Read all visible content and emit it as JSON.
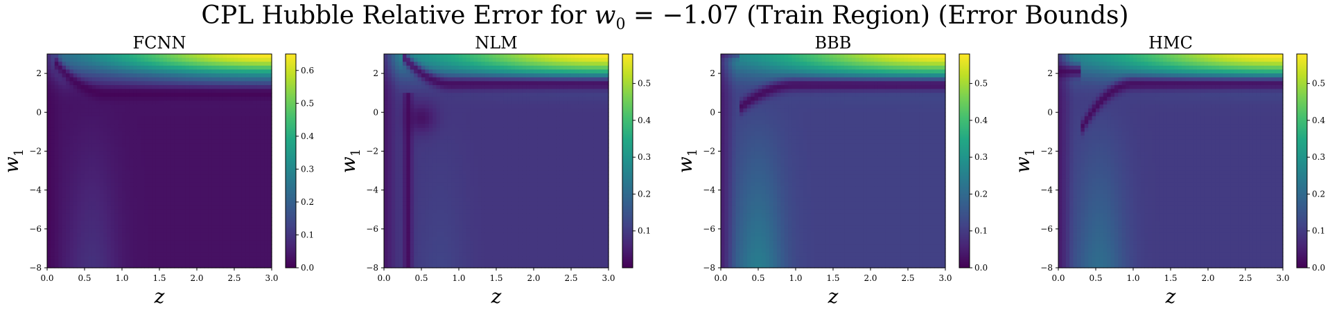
{
  "title_prefix": "CPL Hubble Relative Error for ",
  "title_math": "w",
  "title_math_sub": "0",
  "title_math_rest": " = −1.07",
  "title_suffix": " (Train Region) (Error Bounds)",
  "chart_data": [
    {
      "type": "heatmap",
      "title": "FCNN",
      "xlabel": "z",
      "ylabel": "w1",
      "xlim": [
        0.0,
        3.0
      ],
      "ylim": [
        -8,
        3
      ],
      "xticks": [
        0.0,
        0.5,
        1.0,
        1.5,
        2.0,
        2.5,
        3.0
      ],
      "xtick_labels": [
        "0.0",
        "0.5",
        "1.0",
        "1.5",
        "2.0",
        "2.5",
        "3.0"
      ],
      "yticks": [
        -8,
        -6,
        -4,
        -2,
        0,
        2
      ],
      "ytick_labels": [
        "−8",
        "−6",
        "−4",
        "−2",
        "0",
        "2"
      ],
      "colormap": "viridis",
      "colorbar_range": [
        0.0,
        0.65
      ],
      "colorbar_ticks": [
        0.0,
        0.1,
        0.2,
        0.3,
        0.4,
        0.5,
        0.6
      ],
      "colorbar_tick_labels": [
        "0.0",
        "0.1",
        "0.2",
        "0.3",
        "0.4",
        "0.5",
        "0.6"
      ],
      "features": {
        "base": 0.03,
        "corner_peak": {
          "value": 0.65,
          "x": 3.0,
          "y": 3.0
        },
        "band": {
          "center_z": 0.6,
          "value": 0.1
        },
        "trough": {
          "mode": "curve",
          "y_flat": 0.95,
          "y_bottom": 2.6,
          "z_start": 0.1,
          "z_end": 0.8
        }
      }
    },
    {
      "type": "heatmap",
      "title": "NLM",
      "xlabel": "z",
      "ylabel": "w1",
      "xlim": [
        0.0,
        3.0
      ],
      "ylim": [
        -8,
        3
      ],
      "xticks": [
        0.0,
        0.5,
        1.0,
        1.5,
        2.0,
        2.5,
        3.0
      ],
      "xtick_labels": [
        "0.0",
        "0.5",
        "1.0",
        "1.5",
        "2.0",
        "2.5",
        "3.0"
      ],
      "yticks": [
        -8,
        -6,
        -4,
        -2,
        0,
        2
      ],
      "ytick_labels": [
        "−8",
        "−6",
        "−4",
        "−2",
        "0",
        "2"
      ],
      "colormap": "viridis",
      "colorbar_range": [
        0.0,
        0.58
      ],
      "colorbar_ticks": [
        0.1,
        0.2,
        0.3,
        0.4,
        0.5
      ],
      "colorbar_tick_labels": [
        "0.1",
        "0.2",
        "0.3",
        "0.4",
        "0.5"
      ],
      "features": {
        "base": 0.09,
        "corner_peak": {
          "value": 0.58,
          "x": 3.0,
          "y": 3.0
        },
        "band": {
          "center_z": 0.75,
          "value": 0.12
        },
        "trough": {
          "mode": "curve",
          "y_flat": 1.45,
          "z_start": 0.25,
          "z_end": 0.9,
          "y_bottom": 2.9
        },
        "vertical_trough": {
          "z": 0.32
        },
        "dark_blob": {
          "z": 0.5,
          "y": -0.3
        }
      }
    },
    {
      "type": "heatmap",
      "title": "BBB",
      "xlabel": "z",
      "ylabel": "w1",
      "xlim": [
        0.0,
        3.0
      ],
      "ylim": [
        -8,
        3
      ],
      "xticks": [
        0.0,
        0.5,
        1.0,
        1.5,
        2.0,
        2.5,
        3.0
      ],
      "xtick_labels": [
        "0.0",
        "0.5",
        "1.0",
        "1.5",
        "2.0",
        "2.5",
        "3.0"
      ],
      "yticks": [
        -8,
        -6,
        -4,
        -2,
        0,
        2
      ],
      "ytick_labels": [
        "−8",
        "−6",
        "−4",
        "−2",
        "0",
        "2"
      ],
      "colormap": "viridis",
      "colorbar_range": [
        0.0,
        0.58
      ],
      "colorbar_ticks": [
        0.0,
        0.1,
        0.2,
        0.3,
        0.4,
        0.5
      ],
      "colorbar_tick_labels": [
        "0.0",
        "0.1",
        "0.2",
        "0.3",
        "0.4",
        "0.5"
      ],
      "features": {
        "base": 0.11,
        "corner_peak": {
          "value": 0.58,
          "x": 3.0,
          "y": 3.0
        },
        "band": {
          "center_z": 0.5,
          "value": 0.26
        },
        "trough": {
          "mode": "curve",
          "y_flat": 1.4,
          "z_start": 0.25,
          "z_end": 1.0,
          "y_bottom": 0.2
        }
      }
    },
    {
      "type": "heatmap",
      "title": "HMC",
      "xlabel": "z",
      "ylabel": "w1",
      "xlim": [
        0.0,
        3.0
      ],
      "ylim": [
        -8,
        3
      ],
      "xticks": [
        0.0,
        0.5,
        1.0,
        1.5,
        2.0,
        2.5,
        3.0
      ],
      "xtick_labels": [
        "0.0",
        "0.5",
        "1.0",
        "1.5",
        "2.0",
        "2.5",
        "3.0"
      ],
      "yticks": [
        -8,
        -6,
        -4,
        -2,
        0,
        2
      ],
      "ytick_labels": [
        "−8",
        "−6",
        "−4",
        "−2",
        "0",
        "2"
      ],
      "colormap": "viridis",
      "colorbar_range": [
        0.0,
        0.58
      ],
      "colorbar_ticks": [
        0.0,
        0.1,
        0.2,
        0.3,
        0.4,
        0.5
      ],
      "colorbar_tick_labels": [
        "0.0",
        "0.1",
        "0.2",
        "0.3",
        "0.4",
        "0.5"
      ],
      "features": {
        "base": 0.1,
        "corner_peak": {
          "value": 0.58,
          "x": 3.0,
          "y": 3.0
        },
        "band": {
          "center_z": 0.55,
          "value": 0.22
        },
        "trough": {
          "mode": "curve",
          "y_flat": 1.45,
          "z_start": 0.3,
          "z_end": 1.0,
          "y_bottom": -0.9
        }
      }
    }
  ]
}
